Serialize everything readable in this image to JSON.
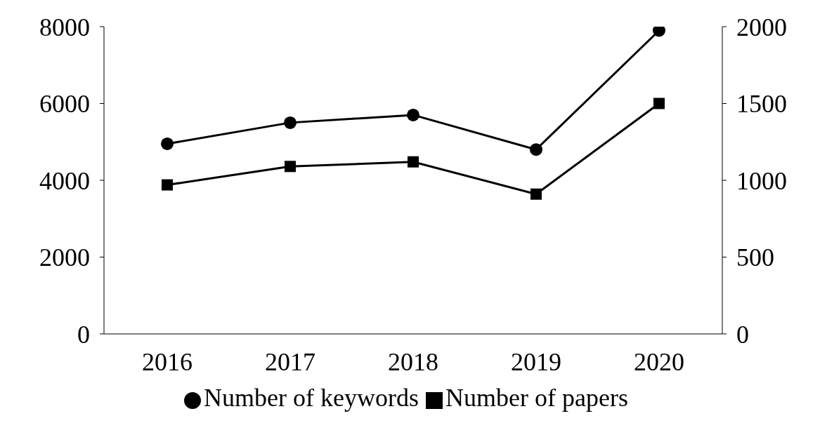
{
  "chart_data": {
    "type": "line",
    "categories": [
      "2016",
      "2017",
      "2018",
      "2019",
      "2020"
    ],
    "series": [
      {
        "name": "Number of keywords",
        "color": "#000000",
        "marker": "circle",
        "values": [
          4950,
          5500,
          5700,
          4800,
          7900
        ]
      },
      {
        "name": "Number of papers",
        "color": "#000000",
        "marker": "square",
        "axis": "y2",
        "values": [
          970,
          1090,
          1120,
          910,
          1500
        ]
      }
    ],
    "ylim": [
      0,
      8000
    ],
    "yticks": [
      0,
      2000,
      4000,
      6000,
      8000
    ],
    "y2lim": [
      0,
      2000
    ],
    "y2ticks": [
      0,
      500,
      1000,
      1500,
      2000
    ],
    "legend": "bottom",
    "grid": false
  }
}
